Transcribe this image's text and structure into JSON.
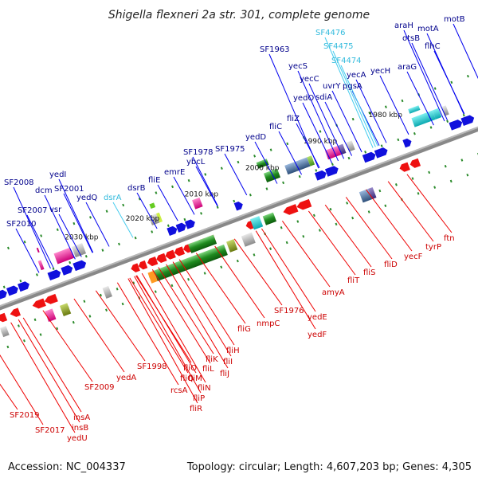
{
  "title": "Shigella flexneri 2a str. 301, complete genome",
  "footer": {
    "accession": "Accession: NC_004337",
    "topology": "Topology: circular; Length: 4,607,203 bp; Genes: 4,305"
  },
  "colors": {
    "forward_label": "#00008b",
    "reverse_label": "#cc0000",
    "rna_label": "#33bbdd",
    "forward_line": "#0000ee",
    "reverse_line": "#ee0000",
    "rna_line": "#44ccee",
    "backbone": "#888888"
  },
  "kbp_labels": [
    "2030 kbp",
    "2020 kbp",
    "2010 kbp",
    "2000 kbp",
    "1990 kbp",
    "1980 kbp"
  ],
  "forward_labels": [
    "SF2010",
    "SF2007",
    "SF2008",
    "dcm",
    "vsr",
    "yedI",
    "SF2001",
    "yedQ",
    "dsrB",
    "fliE",
    "emrE",
    "ybcL",
    "SF1978",
    "SF1975",
    "yedD",
    "fliC",
    "fliZ",
    "SF1963",
    "yecS",
    "yecC",
    "yedO",
    "sdiA",
    "uvrY",
    "pgsA",
    "yecA",
    "yecH",
    "araG",
    "araH",
    "otsB",
    "flhC",
    "motA",
    "motB"
  ],
  "rna_labels": [
    "dsrA",
    "SF4476",
    "SF4475",
    "SF4474"
  ],
  "reverse_labels": [
    "SF2019",
    "SF2017",
    "insA",
    "insB",
    "yedU",
    "SF2009",
    "yedA",
    "SF1998",
    "rcsA",
    "fliQ",
    "fliO",
    "fliP",
    "fliR",
    "fliM",
    "fliN",
    "fliK",
    "fliL",
    "fliJ",
    "fliH",
    "fliI",
    "fliG",
    "nmpC",
    "SF1976",
    "yedE",
    "yedF",
    "amyA",
    "fliT",
    "fliS",
    "fliD",
    "yecF",
    "tyrP",
    "ftn"
  ]
}
